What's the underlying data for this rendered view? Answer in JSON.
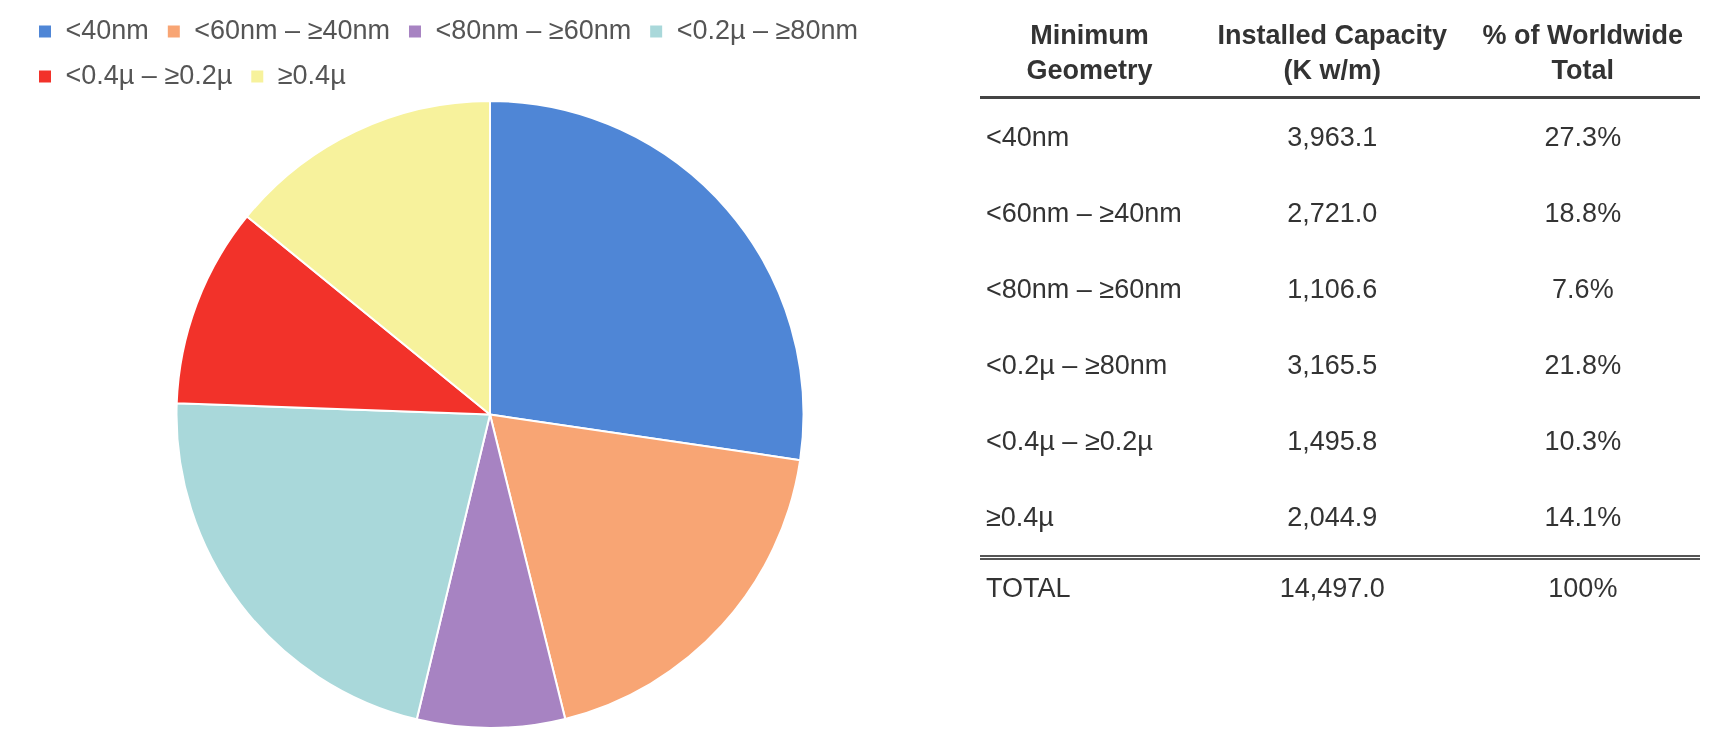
{
  "chart_data": {
    "type": "pie",
    "categories": [
      "<40nm",
      "<60nm – ≥40nm",
      "<80nm – ≥60nm",
      "<0.2µ – ≥80nm",
      "<0.4µ – ≥0.2µ",
      "≥0.4µ"
    ],
    "values": [
      27.3,
      18.8,
      7.6,
      21.8,
      10.3,
      14.1
    ],
    "colors": [
      "#4f86d6",
      "#f8a574",
      "#a783c2",
      "#a9d8da",
      "#f2322a",
      "#f7f29c"
    ],
    "legend": "top left",
    "annotations": [
      "Minimum Geometry",
      "Installed Capacity (K w/m)",
      "% of Worldwide Total",
      "3,963.1",
      "2,721.0",
      "1,106.6",
      "3,165.5",
      "1,495.8",
      "2,044.9",
      "27.3%",
      "18.8%",
      "7.6%",
      "21.8%",
      "10.3%",
      "14.1%",
      "TOTAL",
      "14,497.0",
      "100%"
    ]
  }
}
